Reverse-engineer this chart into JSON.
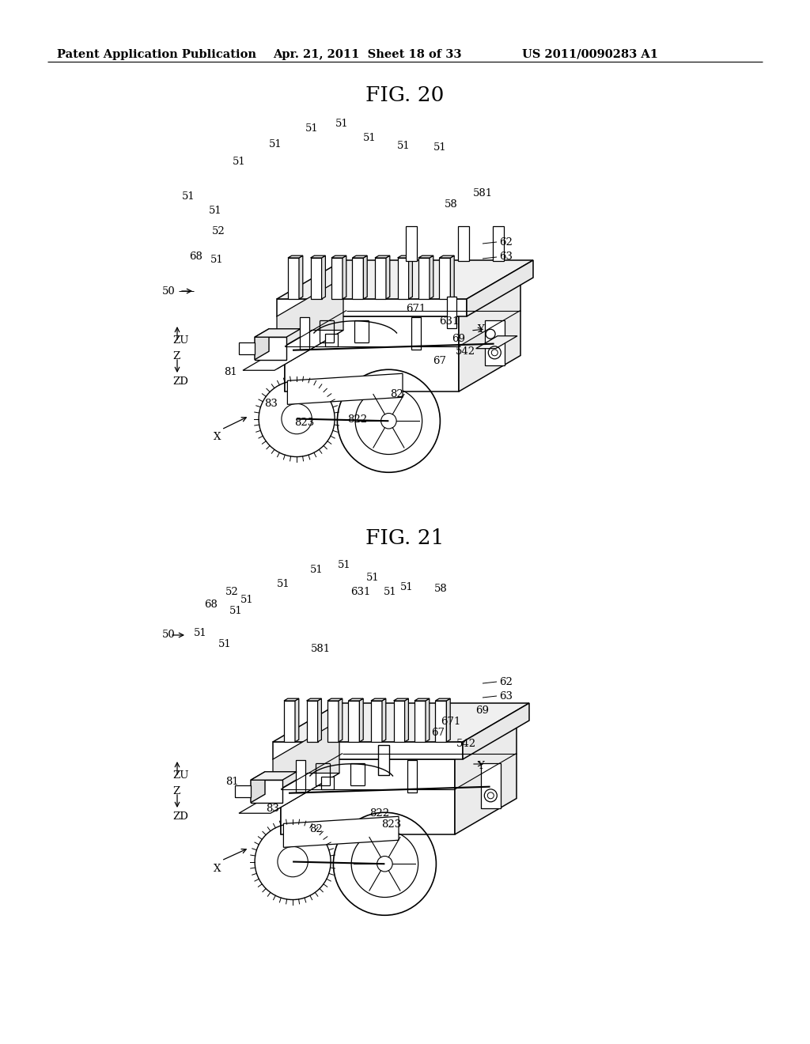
{
  "bg_color": "#ffffff",
  "header_left": "Patent Application Publication",
  "header_center": "Apr. 21, 2011  Sheet 18 of 33",
  "header_right": "US 2011/0090283 A1",
  "fig20_title": "FIG. 20",
  "fig21_title": "FIG. 21",
  "header_fontsize": 10.5,
  "title_fontsize": 19,
  "label_fontsize": 9.5
}
